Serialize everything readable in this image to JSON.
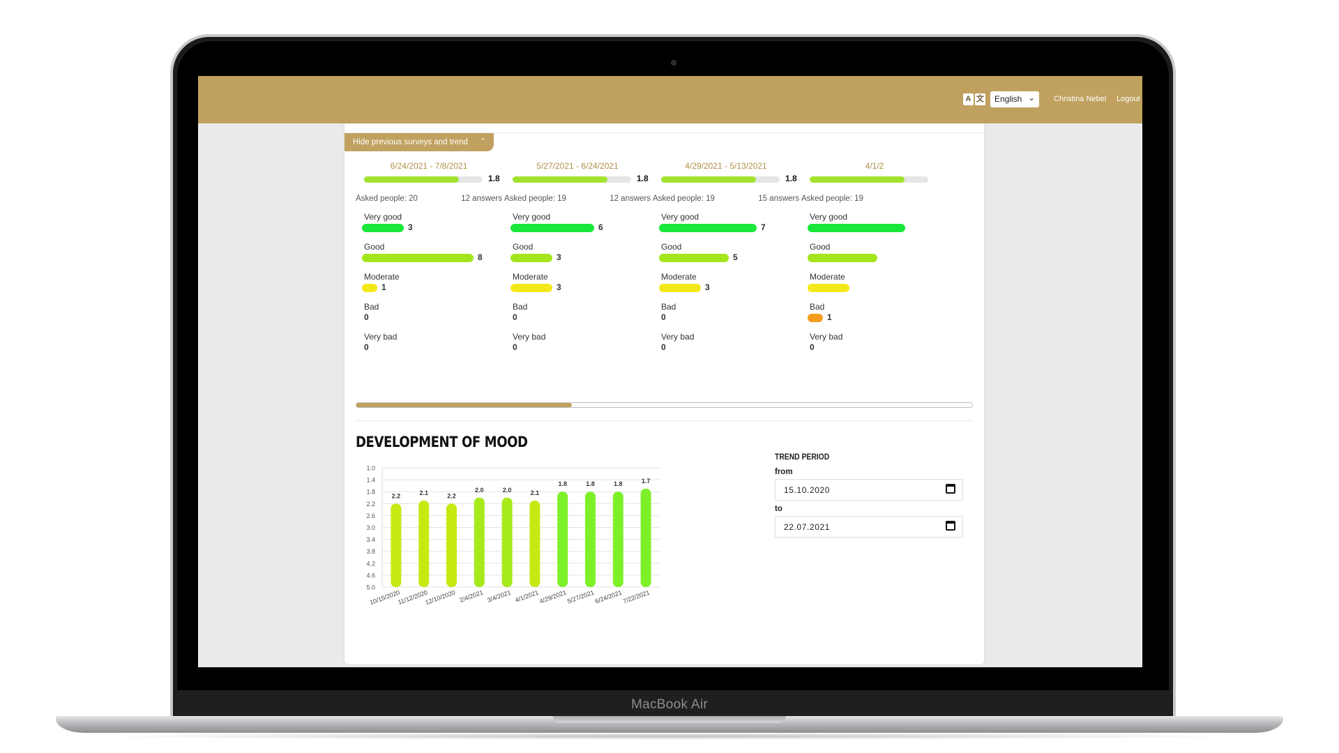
{
  "device": {
    "brand": "MacBook Air"
  },
  "header": {
    "language_icon": "translate-icon",
    "language": "English",
    "user_name": "Christina Nebel",
    "logout_label": "Logout"
  },
  "surveys": {
    "toggle_label": "Hide previous surveys and trend",
    "items": [
      {
        "date": "6/24/2021 - 7/8/2021",
        "avg": "1.8",
        "avg_fill": 0.8,
        "asked": "Asked people: 20",
        "answers": "12 answers",
        "categories": [
          {
            "label": "Very good",
            "value": "3",
            "count": 3,
            "color": "#19e83a"
          },
          {
            "label": "Good",
            "value": "8",
            "count": 8,
            "color": "#a4e61e"
          },
          {
            "label": "Moderate",
            "value": "1",
            "count": 1,
            "color": "#f4e81d"
          },
          {
            "label": "Bad",
            "value": "0",
            "count": 0,
            "color": "#f39c1f"
          },
          {
            "label": "Very bad",
            "value": "0",
            "count": 0,
            "color": "#e84a2a"
          }
        ]
      },
      {
        "date": "5/27/2021 - 6/24/2021",
        "avg": "1.8",
        "avg_fill": 0.8,
        "asked": "Asked people: 19",
        "answers": "12 answers",
        "categories": [
          {
            "label": "Very good",
            "value": "6",
            "count": 6,
            "color": "#19e83a"
          },
          {
            "label": "Good",
            "value": "3",
            "count": 3,
            "color": "#a4e61e"
          },
          {
            "label": "Moderate",
            "value": "3",
            "count": 3,
            "color": "#f4e81d"
          },
          {
            "label": "Bad",
            "value": "0",
            "count": 0,
            "color": "#f39c1f"
          },
          {
            "label": "Very bad",
            "value": "0",
            "count": 0,
            "color": "#e84a2a"
          }
        ]
      },
      {
        "date": "4/29/2021 - 5/13/2021",
        "avg": "1.8",
        "avg_fill": 0.8,
        "asked": "Asked people: 19",
        "answers": "15 answers",
        "categories": [
          {
            "label": "Very good",
            "value": "7",
            "count": 7,
            "color": "#19e83a"
          },
          {
            "label": "Good",
            "value": "5",
            "count": 5,
            "color": "#a4e61e"
          },
          {
            "label": "Moderate",
            "value": "3",
            "count": 3,
            "color": "#f4e81d"
          },
          {
            "label": "Bad",
            "value": "0",
            "count": 0,
            "color": "#f39c1f"
          },
          {
            "label": "Very bad",
            "value": "0",
            "count": 0,
            "color": "#e84a2a"
          }
        ]
      },
      {
        "date": "4/1/2",
        "avg": "",
        "avg_fill": 0.8,
        "asked": "Asked people: 19",
        "answers": "",
        "categories": [
          {
            "label": "Very good",
            "value": "",
            "count": 7,
            "color": "#19e83a"
          },
          {
            "label": "Good",
            "value": "",
            "count": 5,
            "color": "#a4e61e"
          },
          {
            "label": "Moderate",
            "value": "",
            "count": 3,
            "color": "#f4e81d"
          },
          {
            "label": "Bad",
            "value": "1",
            "count": 1,
            "color": "#f39c1f"
          },
          {
            "label": "Very bad",
            "value": "0",
            "count": 0,
            "color": "#e84a2a"
          }
        ]
      }
    ],
    "scroll_position": 0.35
  },
  "mood": {
    "title": "DEVELOPMENT OF MOOD"
  },
  "trend": {
    "title": "TREND PERIOD",
    "from_label": "from",
    "from_value": "15.10.2020",
    "to_label": "to",
    "to_value": "22.07.2021",
    "calendar_icon": "calendar-icon"
  },
  "chart_data": {
    "type": "bar",
    "title": "DEVELOPMENT OF MOOD",
    "categories": [
      "10/15/2020",
      "11/12/2020",
      "12/10/2020",
      "2/4/2021",
      "3/4/2021",
      "4/1/2021",
      "4/29/2021",
      "5/27/2021",
      "6/24/2021",
      "7/22/2021"
    ],
    "values": [
      2.2,
      2.1,
      2.2,
      2.0,
      2.0,
      2.1,
      1.8,
      1.8,
      1.8,
      1.7
    ],
    "value_labels": [
      "2.2",
      "2.1",
      "2.2",
      "2.0",
      "2.0",
      "2.1",
      "1.8",
      "1.8",
      "1.8",
      "1.7"
    ],
    "yticks": [
      "1.0",
      "1.4",
      "1.8",
      "2.2",
      "2.6",
      "3.0",
      "3.4",
      "3.8",
      "4.2",
      "4.6",
      "5.0"
    ],
    "ylim": [
      1.0,
      5.0
    ],
    "y_inverted": true,
    "grid": true,
    "bar_color_good": "#7ef02a",
    "bar_color_mid": "#c5ea12"
  }
}
